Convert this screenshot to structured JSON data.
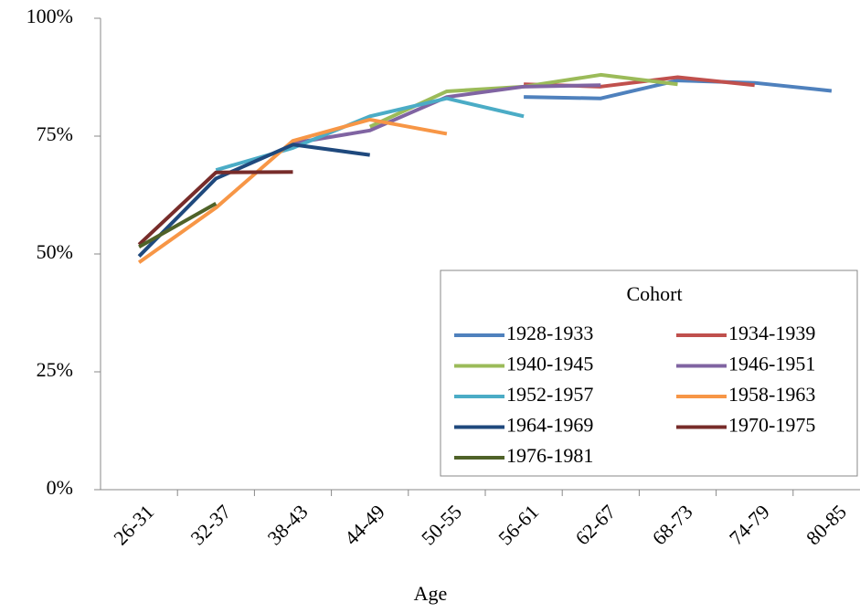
{
  "chart_data": {
    "type": "line",
    "x_label": "Age",
    "legend_title": "Cohort",
    "legend": "lower-right",
    "categories": [
      "26-31",
      "32-37",
      "38-43",
      "44-49",
      "50-55",
      "56-61",
      "62-67",
      "68-73",
      "74-79",
      "80-85"
    ],
    "ylim": [
      0,
      100
    ],
    "yticks": [
      {
        "value": 0,
        "label": "0%"
      },
      {
        "value": 25,
        "label": "25%"
      },
      {
        "value": 50,
        "label": "50%"
      },
      {
        "value": 75,
        "label": "75%"
      },
      {
        "value": 100,
        "label": "100%"
      }
    ],
    "series": [
      {
        "name": "1928-1933",
        "color": "#4f81bd",
        "values": [
          null,
          null,
          null,
          null,
          null,
          83.3,
          83.0,
          86.8,
          86.3,
          84.6
        ]
      },
      {
        "name": "1934-1939",
        "color": "#c0504d",
        "values": [
          null,
          null,
          null,
          null,
          null,
          86.0,
          85.5,
          87.5,
          85.8,
          null
        ]
      },
      {
        "name": "1940-1945",
        "color": "#9bbb59",
        "values": [
          null,
          null,
          null,
          77.0,
          84.5,
          85.5,
          88.0,
          86.0,
          null,
          null
        ]
      },
      {
        "name": "1946-1951",
        "color": "#8064a2",
        "values": [
          null,
          null,
          73.5,
          76.2,
          83.3,
          85.5,
          85.8,
          null,
          null,
          null
        ]
      },
      {
        "name": "1952-1957",
        "color": "#4bacc6",
        "values": [
          null,
          67.8,
          72.5,
          79.2,
          83.0,
          79.2,
          null,
          null,
          null,
          null
        ]
      },
      {
        "name": "1958-1963",
        "color": "#f79646",
        "values": [
          48.2,
          59.8,
          74.0,
          78.5,
          75.5,
          null,
          null,
          null,
          null,
          null
        ]
      },
      {
        "name": "1964-1969",
        "color": "#1f497d",
        "values": [
          49.5,
          66.0,
          73.2,
          71.0,
          null,
          null,
          null,
          null,
          null,
          null
        ]
      },
      {
        "name": "1970-1975",
        "color": "#772c2a",
        "values": [
          52.0,
          67.3,
          67.4,
          null,
          null,
          null,
          null,
          null,
          null,
          null
        ]
      },
      {
        "name": "1976-1981",
        "color": "#4f6228",
        "values": [
          51.5,
          60.7,
          null,
          null,
          null,
          null,
          null,
          null,
          null,
          null
        ]
      }
    ]
  }
}
